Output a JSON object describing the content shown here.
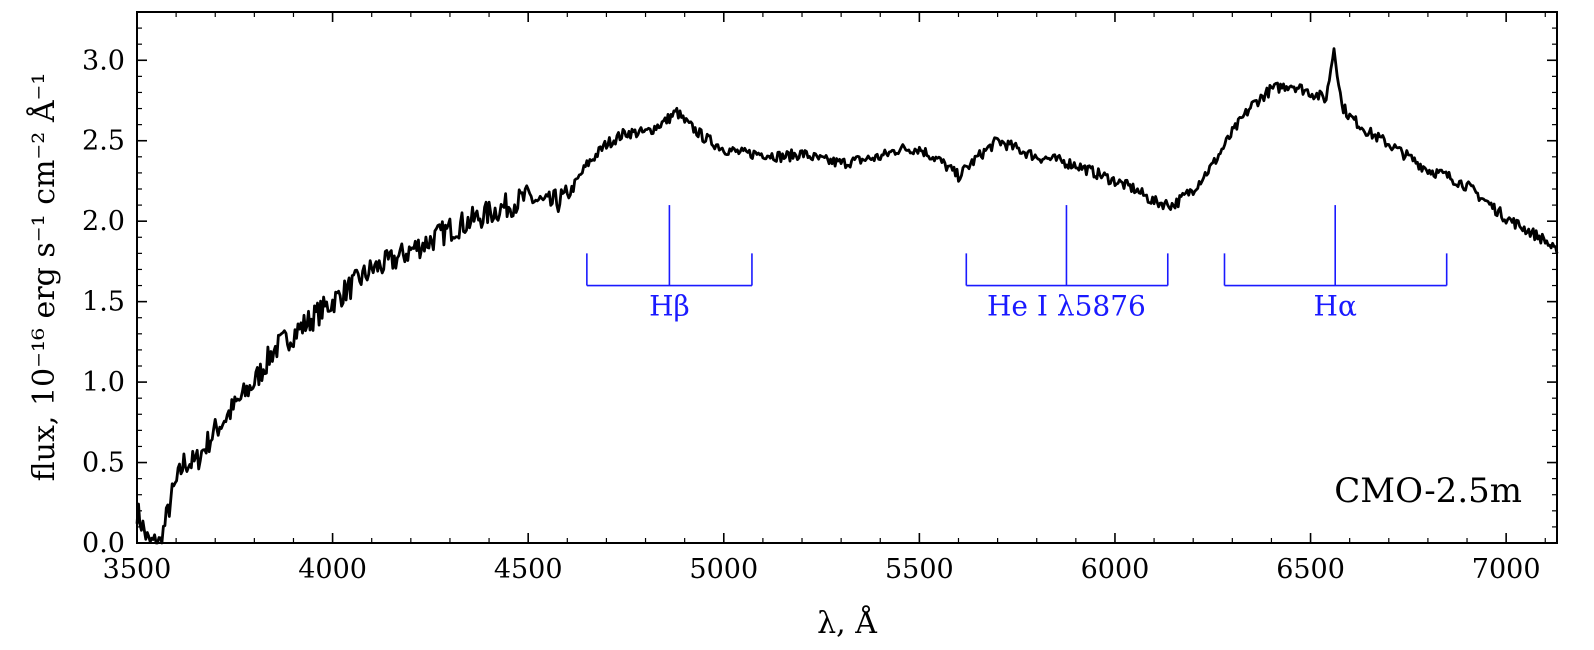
{
  "chart_data": {
    "type": "line",
    "title": "",
    "xlabel": "λ, Å",
    "ylabel": "flux, 10⁻¹⁶ erg s⁻¹ cm⁻² Å⁻¹",
    "xlim": [
      3500,
      7130
    ],
    "ylim": [
      0.0,
      3.3
    ],
    "x_ticks": [
      3500,
      4000,
      4500,
      5000,
      5500,
      6000,
      6500,
      7000
    ],
    "x_tick_labels": [
      "3500",
      "4000",
      "4500",
      "5000",
      "5500",
      "6000",
      "6500",
      "7000"
    ],
    "y_ticks": [
      0.0,
      0.5,
      1.0,
      1.5,
      2.0,
      2.5,
      3.0
    ],
    "y_tick_labels": [
      "0.0",
      "0.5",
      "1.0",
      "1.5",
      "2.0",
      "2.5",
      "3.0"
    ],
    "grid": false,
    "legend": "none",
    "annotation": "CMO-2.5m",
    "series": [
      {
        "color": "#000000",
        "x": [
          3500,
          3530,
          3560,
          3590,
          3620,
          3650,
          3700,
          3750,
          3800,
          3850,
          3900,
          3950,
          4000,
          4050,
          4100,
          4150,
          4200,
          4250,
          4300,
          4350,
          4400,
          4450,
          4500,
          4550,
          4600,
          4650,
          4700,
          4750,
          4800,
          4850,
          4880,
          4900,
          4950,
          5000,
          5050,
          5100,
          5150,
          5200,
          5250,
          5300,
          5350,
          5400,
          5450,
          5500,
          5550,
          5600,
          5650,
          5700,
          5750,
          5800,
          5850,
          5900,
          5950,
          6000,
          6050,
          6100,
          6150,
          6200,
          6250,
          6300,
          6350,
          6400,
          6450,
          6500,
          6540,
          6560,
          6580,
          6600,
          6650,
          6700,
          6750,
          6800,
          6850,
          6900,
          6950,
          7000,
          7050,
          7100,
          7130
        ],
        "y": [
          0.2,
          0.0,
          0.0,
          0.3,
          0.5,
          0.5,
          0.7,
          0.85,
          1.0,
          1.2,
          1.3,
          1.4,
          1.5,
          1.6,
          1.7,
          1.75,
          1.82,
          1.88,
          1.95,
          2.0,
          2.05,
          2.1,
          2.15,
          2.1,
          2.15,
          2.35,
          2.48,
          2.55,
          2.55,
          2.62,
          2.68,
          2.62,
          2.52,
          2.45,
          2.42,
          2.42,
          2.4,
          2.42,
          2.38,
          2.36,
          2.38,
          2.4,
          2.45,
          2.45,
          2.38,
          2.28,
          2.4,
          2.5,
          2.45,
          2.4,
          2.38,
          2.35,
          2.3,
          2.25,
          2.2,
          2.12,
          2.1,
          2.2,
          2.35,
          2.55,
          2.72,
          2.82,
          2.85,
          2.8,
          2.76,
          3.08,
          2.72,
          2.65,
          2.55,
          2.48,
          2.4,
          2.32,
          2.28,
          2.22,
          2.12,
          2.02,
          1.95,
          1.88,
          1.8
        ]
      }
    ],
    "line_markers": [
      {
        "label": "Hβ",
        "center": 4861,
        "left": 4650,
        "right": 5072
      },
      {
        "label": "He I λ5876",
        "center": 5876,
        "left": 5620,
        "right": 6135
      },
      {
        "label": "Hα",
        "center": 6563,
        "left": 6280,
        "right": 6848
      }
    ],
    "marker_levels": {
      "top": 2.1,
      "tick_top": 1.8,
      "bar": 1.6
    }
  }
}
